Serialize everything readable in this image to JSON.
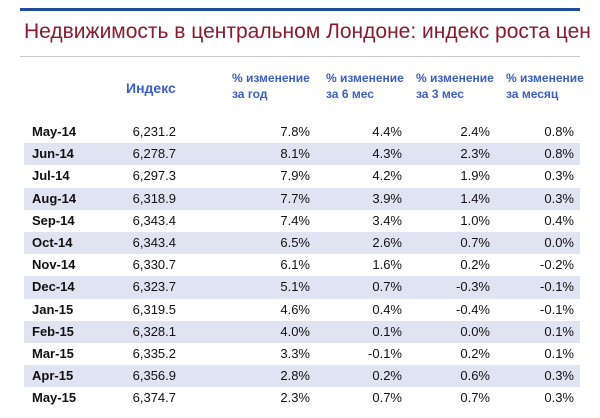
{
  "title": "Недвижимость в центральном Лондоне: индекс роста цен",
  "headers": {
    "index": "Индекс",
    "year": [
      "% изменение",
      "за год"
    ],
    "six_months": [
      "% изменение",
      "за 6 мес"
    ],
    "three_months": [
      "% изменение",
      "за 3 мес"
    ],
    "month": [
      "% изменение",
      "за месяц"
    ]
  },
  "rows": [
    {
      "month": "May-14",
      "index": "6,231.2",
      "year": "7.8%",
      "six_months": "4.4%",
      "three_months": "2.4%",
      "month_change": "0.8%"
    },
    {
      "month": "Jun-14",
      "index": "6,278.7",
      "year": "8.1%",
      "six_months": "4.3%",
      "three_months": "2.3%",
      "month_change": "0.8%"
    },
    {
      "month": "Jul-14",
      "index": "6,297.3",
      "year": "7.9%",
      "six_months": "4.2%",
      "three_months": "1.9%",
      "month_change": "0.3%"
    },
    {
      "month": "Aug-14",
      "index": "6,318.9",
      "year": "7.7%",
      "six_months": "3.9%",
      "three_months": "1.4%",
      "month_change": "0.3%"
    },
    {
      "month": "Sep-14",
      "index": "6,343.4",
      "year": "7.4%",
      "six_months": "3.4%",
      "three_months": "1.0%",
      "month_change": "0.4%"
    },
    {
      "month": "Oct-14",
      "index": "6,343.4",
      "year": "6.5%",
      "six_months": "2.6%",
      "three_months": "0.7%",
      "month_change": "0.0%"
    },
    {
      "month": "Nov-14",
      "index": "6,330.7",
      "year": "6.1%",
      "six_months": "1.6%",
      "three_months": "0.2%",
      "month_change": "-0.2%"
    },
    {
      "month": "Dec-14",
      "index": "6,323.7",
      "year": "5.1%",
      "six_months": "0.7%",
      "three_months": "-0.3%",
      "month_change": "-0.1%"
    },
    {
      "month": "Jan-15",
      "index": "6,319.5",
      "year": "4.6%",
      "six_months": "0.4%",
      "three_months": "-0.4%",
      "month_change": "-0.1%"
    },
    {
      "month": "Feb-15",
      "index": "6,328.1",
      "year": "4.0%",
      "six_months": "0.1%",
      "three_months": "0.0%",
      "month_change": "0.1%"
    },
    {
      "month": "Mar-15",
      "index": "6,335.2",
      "year": "3.3%",
      "six_months": "-0.1%",
      "three_months": "0.2%",
      "month_change": "0.1%"
    },
    {
      "month": "Apr-15",
      "index": "6,356.9",
      "year": "2.8%",
      "six_months": "0.2%",
      "three_months": "0.6%",
      "month_change": "0.3%"
    },
    {
      "month": "May-15",
      "index": "6,374.7",
      "year": "2.3%",
      "six_months": "0.7%",
      "three_months": "0.7%",
      "month_change": "0.3%"
    }
  ],
  "colors": {
    "title": "#8b1a2e",
    "header": "#3a5fc4",
    "band": "#dfe3f2",
    "rule": "#1f4e99"
  }
}
